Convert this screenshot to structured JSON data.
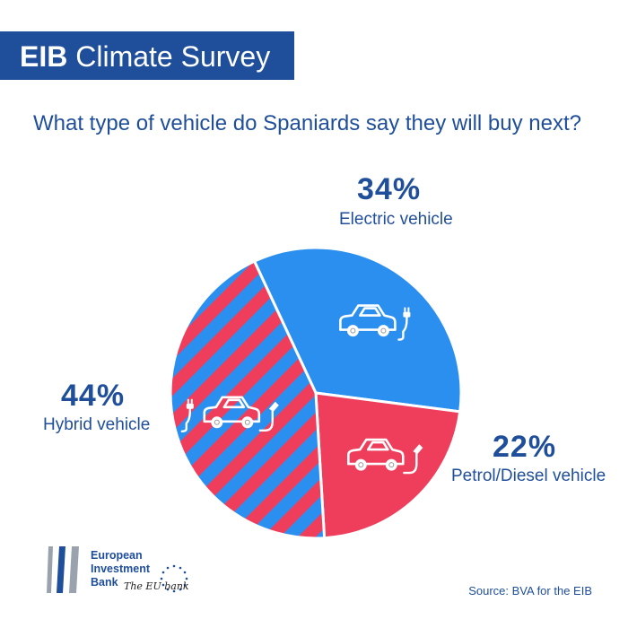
{
  "header": {
    "title_strong": "EIB",
    "title_rest": " Climate Survey",
    "question": "What type of vehicle do Spaniards say they will buy next?"
  },
  "chart_data": {
    "type": "pie",
    "title": "What type of vehicle do Spaniards say they will buy next?",
    "slices": [
      {
        "label": "Electric vehicle",
        "value": 34,
        "display": "34%",
        "color": "#2b8ff0",
        "icon": "electric-car-icon"
      },
      {
        "label": "Petrol/Diesel vehicle",
        "value": 22,
        "display": "22%",
        "color": "#ee3e5c",
        "icon": "petrol-car-icon"
      },
      {
        "label": "Hybrid vehicle",
        "value": 44,
        "display": "44%",
        "color": "#ee3e5c",
        "stripe_color": "#2b8ff0",
        "pattern": "diagonal-stripes",
        "icon": "hybrid-car-icon"
      }
    ]
  },
  "footer": {
    "logo_line1": "European",
    "logo_line2": "Investment",
    "logo_line3": "Bank",
    "tagline": "The EU bank",
    "source": "Source: BVA for the EIB"
  },
  "colors": {
    "brand_blue": "#1f4e9a",
    "electric_blue": "#2b8ff0",
    "red": "#ee3e5c"
  }
}
